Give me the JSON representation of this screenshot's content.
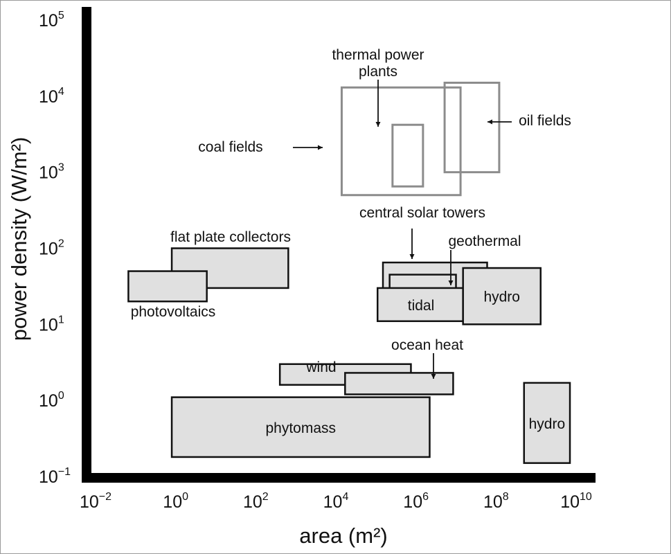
{
  "chart_data": {
    "type": "range-box",
    "x_scale": "log",
    "y_scale": "log",
    "xlabel": "area (m²)",
    "ylabel": "power density (W/m²)",
    "xlim": [
      0.01,
      10000000000
    ],
    "ylim": [
      0.1,
      100000
    ],
    "x_ticks": [
      {
        "value": 0.01,
        "base": "10",
        "exp": "−2"
      },
      {
        "value": 1,
        "base": "10",
        "exp": "0"
      },
      {
        "value": 100,
        "base": "10",
        "exp": "2"
      },
      {
        "value": 10000,
        "base": "10",
        "exp": "4"
      },
      {
        "value": 1000000,
        "base": "10",
        "exp": "6"
      },
      {
        "value": 100000000,
        "base": "10",
        "exp": "8"
      },
      {
        "value": 10000000000,
        "base": "10",
        "exp": "10"
      }
    ],
    "y_ticks": [
      {
        "value": 0.1,
        "base": "10",
        "exp": "−1"
      },
      {
        "value": 1,
        "base": "10",
        "exp": "0"
      },
      {
        "value": 10,
        "base": "10",
        "exp": "1"
      },
      {
        "value": 100,
        "base": "10",
        "exp": "2"
      },
      {
        "value": 1000,
        "base": "10",
        "exp": "3"
      },
      {
        "value": 10000,
        "base": "10",
        "exp": "4"
      },
      {
        "value": 100000,
        "base": "10",
        "exp": "5"
      }
    ],
    "outline_color": "#8c8c8c",
    "fill_color": "#e0e0e0",
    "boxes": [
      {
        "id": "coal-fields",
        "style": "outline",
        "x": [
          14000,
          13000000
        ],
        "y": [
          500,
          13000
        ]
      },
      {
        "id": "thermal-power-plants",
        "style": "outline",
        "x": [
          260000,
          1500000
        ],
        "y": [
          650,
          4200
        ]
      },
      {
        "id": "oil-fields",
        "style": "outline",
        "x": [
          5200000,
          120000000
        ],
        "y": [
          1000,
          15000
        ]
      },
      {
        "id": "flat-plate-collectors",
        "style": "filled",
        "x": [
          0.8,
          650
        ],
        "y": [
          30,
          100
        ]
      },
      {
        "id": "photovoltaics",
        "style": "filled",
        "x": [
          0.066,
          6
        ],
        "y": [
          20,
          50
        ]
      },
      {
        "id": "central-solar-towers",
        "style": "filled",
        "x": [
          150000,
          60000000
        ],
        "y": [
          22,
          65
        ]
      },
      {
        "id": "geothermal",
        "style": "filled",
        "x": [
          220000,
          10000000
        ],
        "y": [
          18,
          45
        ]
      },
      {
        "id": "tidal",
        "style": "filled",
        "x": [
          110000,
          15000000
        ],
        "y": [
          11,
          30
        ]
      },
      {
        "id": "hydro-high",
        "style": "filled",
        "x": [
          15000000,
          1300000000
        ],
        "y": [
          10,
          55
        ],
        "label": "hydro"
      },
      {
        "id": "wind",
        "style": "filled",
        "x": [
          400,
          750000
        ],
        "y": [
          1.6,
          3
        ]
      },
      {
        "id": "ocean-heat",
        "style": "filled",
        "x": [
          17000,
          8500000
        ],
        "y": [
          1.2,
          2.3
        ]
      },
      {
        "id": "phytomass",
        "style": "filled",
        "x": [
          0.8,
          2200000
        ],
        "y": [
          0.18,
          1.1
        ],
        "label": "phytomass"
      },
      {
        "id": "hydro-low",
        "style": "filled",
        "x": [
          500000000,
          7000000000
        ],
        "y": [
          0.15,
          1.7
        ],
        "label": "hydro"
      }
    ],
    "annotations": [
      {
        "id": "thermal-power-plants",
        "lines": [
          "thermal power",
          "plants"
        ]
      },
      {
        "id": "coal-fields",
        "lines": [
          "coal fields"
        ]
      },
      {
        "id": "oil-fields",
        "lines": [
          "oil fields"
        ]
      },
      {
        "id": "central-solar-towers",
        "lines": [
          "central solar towers"
        ]
      },
      {
        "id": "geothermal",
        "lines": [
          "geothermal"
        ]
      },
      {
        "id": "flat-plate-collectors",
        "lines": [
          "flat plate collectors"
        ]
      },
      {
        "id": "photovoltaics",
        "lines": [
          "photovoltaics"
        ]
      },
      {
        "id": "tidal",
        "lines": [
          "tidal"
        ]
      },
      {
        "id": "wind",
        "lines": [
          "wind"
        ]
      },
      {
        "id": "ocean-heat",
        "lines": [
          "ocean heat"
        ]
      }
    ]
  }
}
